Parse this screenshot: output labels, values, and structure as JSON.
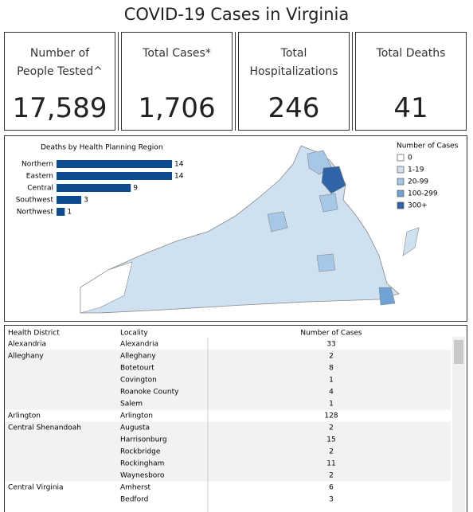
{
  "title": "COVID-19 Cases in Virginia",
  "kpis": [
    {
      "label": "Number of People Tested^",
      "value": "17,589"
    },
    {
      "label": "Total Cases*",
      "value": "1,706"
    },
    {
      "label": "Total Hospitalizations",
      "value": "246"
    },
    {
      "label": "Total Deaths",
      "value": "41"
    }
  ],
  "chart_data": {
    "type": "bar",
    "title": "Deaths by Health Planning Region",
    "categories": [
      "Northern",
      "Eastern",
      "Central",
      "Southwest",
      "Northwest"
    ],
    "values": [
      14,
      14,
      9,
      3,
      1
    ],
    "color": "#0e4c92"
  },
  "map_legend": {
    "title": "Number of Cases",
    "items": [
      {
        "label": "0",
        "color": "#ffffff"
      },
      {
        "label": "1-19",
        "color": "#cfe0f1"
      },
      {
        "label": "20-99",
        "color": "#a6c8e6"
      },
      {
        "label": "100-299",
        "color": "#6fa3d3"
      },
      {
        "label": "300+",
        "color": "#2f64a8"
      }
    ]
  },
  "table": {
    "columns": [
      "Health District",
      "Locality",
      "Number of Cases"
    ],
    "rows": [
      [
        "Alexandria",
        "Alexandria",
        33
      ],
      [
        "Alleghany",
        "Alleghany",
        2
      ],
      [
        null,
        "Botetourt",
        8
      ],
      [
        null,
        "Covington",
        1
      ],
      [
        null,
        "Roanoke County",
        4
      ],
      [
        null,
        "Salem",
        1
      ],
      [
        "Arlington",
        "Arlington",
        128
      ],
      [
        "Central Shenandoah",
        "Augusta",
        2
      ],
      [
        null,
        "Harrisonburg",
        15
      ],
      [
        null,
        "Rockbridge",
        2
      ],
      [
        null,
        "Rockingham",
        11
      ],
      [
        null,
        "Waynesboro",
        2
      ],
      [
        "Central Virginia",
        "Amherst",
        6
      ],
      [
        null,
        "Bedford",
        3
      ]
    ]
  }
}
